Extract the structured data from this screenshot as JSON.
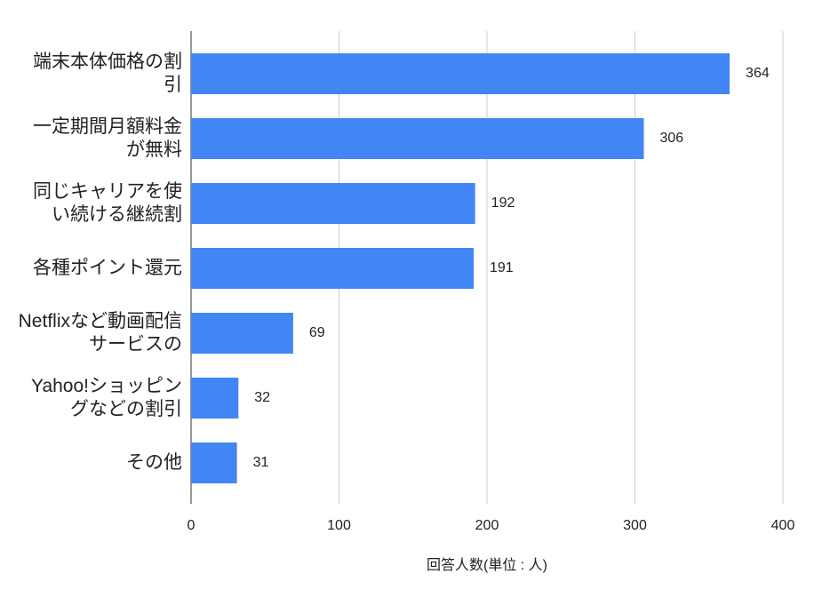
{
  "chart_data": {
    "type": "bar",
    "orientation": "horizontal",
    "categories": [
      "端末本体価格の割引",
      "一定期間月額料金が無料",
      "同じキャリアを使い続ける継続割",
      "各種ポイント還元",
      "Netflixなど動画配信サービスの",
      "Yahoo!ショッピングなどの割引",
      "その他"
    ],
    "values": [
      364,
      306,
      192,
      191,
      69,
      32,
      31
    ],
    "color": "#4285f4",
    "x_label": "回答人数(単位 : 人)",
    "xlim": [
      0,
      400
    ],
    "xticks": [
      0,
      100,
      200,
      300,
      400
    ],
    "grid": true
  }
}
